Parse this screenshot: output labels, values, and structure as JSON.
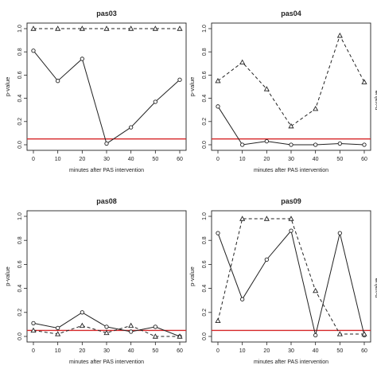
{
  "x_ticks": [
    0,
    10,
    20,
    30,
    40,
    50,
    60
  ],
  "y_ticks": [
    "0.0",
    "0.2",
    "0.4",
    "0.6",
    "0.8",
    "1.0"
  ],
  "cut_edge_label": "p-value",
  "threshold_color": "#d62728",
  "chart_data": [
    {
      "type": "line",
      "title": "pas03",
      "xlabel": "minutes after PAS intervention",
      "ylabel": "p-value",
      "xlim": [
        0,
        60
      ],
      "ylim": [
        0,
        1
      ],
      "x": [
        0,
        10,
        20,
        30,
        40,
        50,
        60
      ],
      "series": [
        {
          "style": "solid",
          "marker": "circle",
          "values": [
            0.81,
            0.55,
            0.74,
            0.01,
            0.15,
            0.37,
            0.56
          ]
        },
        {
          "style": "dashed",
          "marker": "triangle",
          "values": [
            1.0,
            1.0,
            1.0,
            1.0,
            1.0,
            1.0,
            1.0
          ]
        }
      ],
      "hline": 0.05
    },
    {
      "type": "line",
      "title": "pas04",
      "xlabel": "minutes after PAS intervention",
      "ylabel": "p-value",
      "xlim": [
        0,
        60
      ],
      "ylim": [
        0,
        1
      ],
      "x": [
        0,
        10,
        20,
        30,
        40,
        50,
        60
      ],
      "series": [
        {
          "style": "solid",
          "marker": "circle",
          "values": [
            0.33,
            0.0,
            0.03,
            0.0,
            0.0,
            0.01,
            0.0
          ]
        },
        {
          "style": "dashed",
          "marker": "triangle",
          "values": [
            0.55,
            0.71,
            0.48,
            0.16,
            0.31,
            0.94,
            0.54
          ]
        }
      ],
      "hline": 0.05
    },
    {
      "type": "line",
      "title": "pas08",
      "xlabel": "minutes after PAS intervention",
      "ylabel": "p-value",
      "xlim": [
        0,
        60
      ],
      "ylim": [
        0,
        1
      ],
      "x": [
        0,
        10,
        20,
        30,
        40,
        50,
        60
      ],
      "series": [
        {
          "style": "solid",
          "marker": "circle",
          "values": [
            0.11,
            0.07,
            0.2,
            0.08,
            0.04,
            0.08,
            0.0
          ]
        },
        {
          "style": "dashed",
          "marker": "triangle",
          "values": [
            0.05,
            0.02,
            0.09,
            0.03,
            0.09,
            0.0,
            0.0
          ]
        }
      ],
      "hline": 0.05
    },
    {
      "type": "line",
      "title": "pas09",
      "xlabel": "minutes after PAS intervention",
      "ylabel": "p-value",
      "xlim": [
        0,
        60
      ],
      "ylim": [
        0,
        1
      ],
      "x": [
        0,
        10,
        20,
        30,
        40,
        50,
        60
      ],
      "series": [
        {
          "style": "solid",
          "marker": "circle",
          "values": [
            0.86,
            0.31,
            0.64,
            0.88,
            0.01,
            0.86,
            0.01
          ]
        },
        {
          "style": "dashed",
          "marker": "triangle",
          "values": [
            0.13,
            0.98,
            0.98,
            0.98,
            0.38,
            0.02,
            0.02
          ]
        }
      ],
      "hline": 0.05
    }
  ]
}
